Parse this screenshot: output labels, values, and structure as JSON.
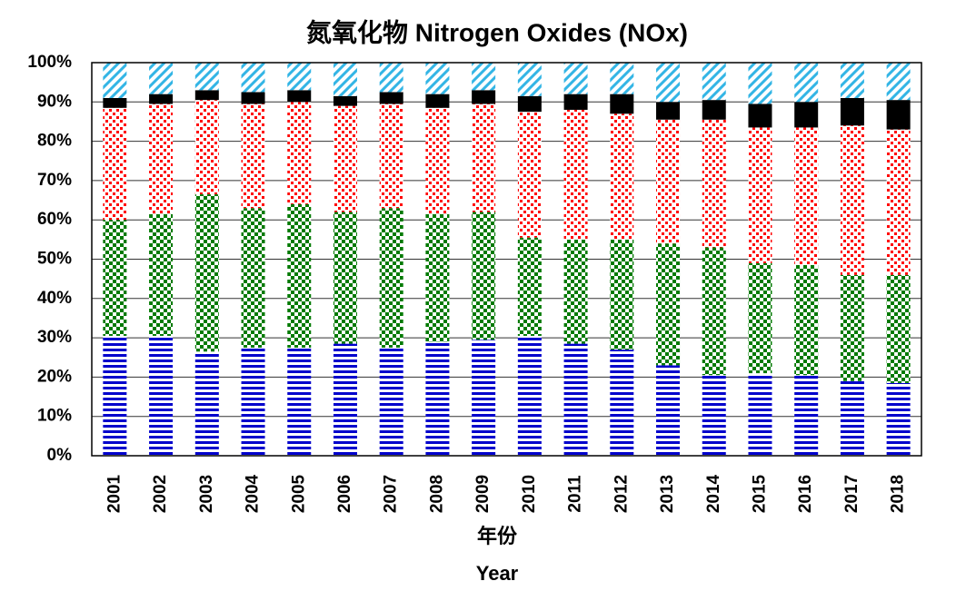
{
  "chart_data": {
    "type": "stacked_bar",
    "title": "氮氧化物 Nitrogen Oxides (NOx)",
    "xlabel": "年份",
    "xlabel_en": "Year",
    "categories": [
      "2001",
      "2002",
      "2003",
      "2004",
      "2005",
      "2006",
      "2007",
      "2008",
      "2009",
      "2010",
      "2011",
      "2012",
      "2013",
      "2014",
      "2015",
      "2016",
      "2017",
      "2018"
    ],
    "series": [
      {
        "color": "#0000cc",
        "pattern": "hlines",
        "values": [
          30.5,
          30.5,
          26.5,
          27.5,
          27.5,
          28.5,
          27.5,
          29,
          29.5,
          30.5,
          28.5,
          27,
          23,
          20.5,
          21,
          20.5,
          19,
          18.5
        ]
      },
      {
        "color": "#007a00",
        "pattern": "checker",
        "values": [
          29.5,
          31,
          40,
          35.5,
          36.5,
          33.5,
          35.5,
          32.5,
          32.5,
          25,
          26.5,
          28,
          31,
          32.5,
          28,
          28,
          27,
          27.5
        ]
      },
      {
        "color": "#ff0000",
        "pattern": "dots",
        "values": [
          28.5,
          28,
          24,
          26.5,
          26,
          27,
          26.5,
          27,
          27.5,
          32,
          33,
          32,
          31.5,
          32.5,
          34.5,
          35,
          38,
          37
        ]
      },
      {
        "color": "#000000",
        "pattern": "solid",
        "values": [
          2.5,
          2.5,
          2.5,
          3,
          3,
          2.5,
          3,
          3.5,
          3.5,
          4,
          4,
          5,
          4.5,
          5,
          6,
          6.5,
          7,
          7.5
        ]
      },
      {
        "color": "#33b5e5",
        "pattern": "diagonal",
        "values": [
          9,
          8,
          7,
          7.5,
          7,
          8.5,
          7.5,
          8,
          7,
          8.5,
          8,
          8,
          10,
          9.5,
          10.5,
          10,
          9,
          9.5
        ]
      }
    ],
    "ylim": [
      0,
      100
    ],
    "yticks": [
      {
        "value": 0,
        "label": "0%"
      },
      {
        "value": 10,
        "label": "10%"
      },
      {
        "value": 20,
        "label": "20%"
      },
      {
        "value": 30,
        "label": "30%"
      },
      {
        "value": 40,
        "label": "40%"
      },
      {
        "value": 50,
        "label": "50%"
      },
      {
        "value": 60,
        "label": "60%"
      },
      {
        "value": 70,
        "label": "70%"
      },
      {
        "value": 80,
        "label": "80%"
      },
      {
        "value": 90,
        "label": "90%"
      },
      {
        "value": 100,
        "label": "100%"
      }
    ],
    "grid": true
  }
}
